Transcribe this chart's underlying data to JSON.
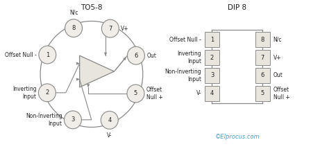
{
  "bg_color": "#ffffff",
  "title_to5": "TO5-8",
  "title_dip": "DIP 8",
  "copyright": "©Elprocus.com",
  "copyright_color": "#4aa0c8",
  "circle_facecolor": "#f0ede8",
  "circle_edge": "#888888",
  "box_facecolor": "#e8e4de",
  "box_edge": "#888888",
  "amp_facecolor": "#e8e4de",
  "amp_edge": "#888888",
  "line_color": "#888888",
  "text_color": "#222222",
  "label_color": "#222222",
  "pin_angles": [
    157,
    202,
    247,
    292,
    337,
    22,
    67,
    112
  ],
  "pin_nums": [
    1,
    2,
    3,
    4,
    5,
    6,
    7,
    8
  ],
  "dip_left_labels": [
    "Offset Null -",
    "Inverting\nInput",
    "Non-Inverting\nInput",
    "V-"
  ],
  "dip_left_nums": [
    "1",
    "2",
    "3",
    "4"
  ],
  "dip_right_labels": [
    "N/c",
    "V+",
    "Out",
    "Offset\nNull +"
  ],
  "dip_right_nums": [
    "8",
    "7",
    "6",
    "5"
  ]
}
